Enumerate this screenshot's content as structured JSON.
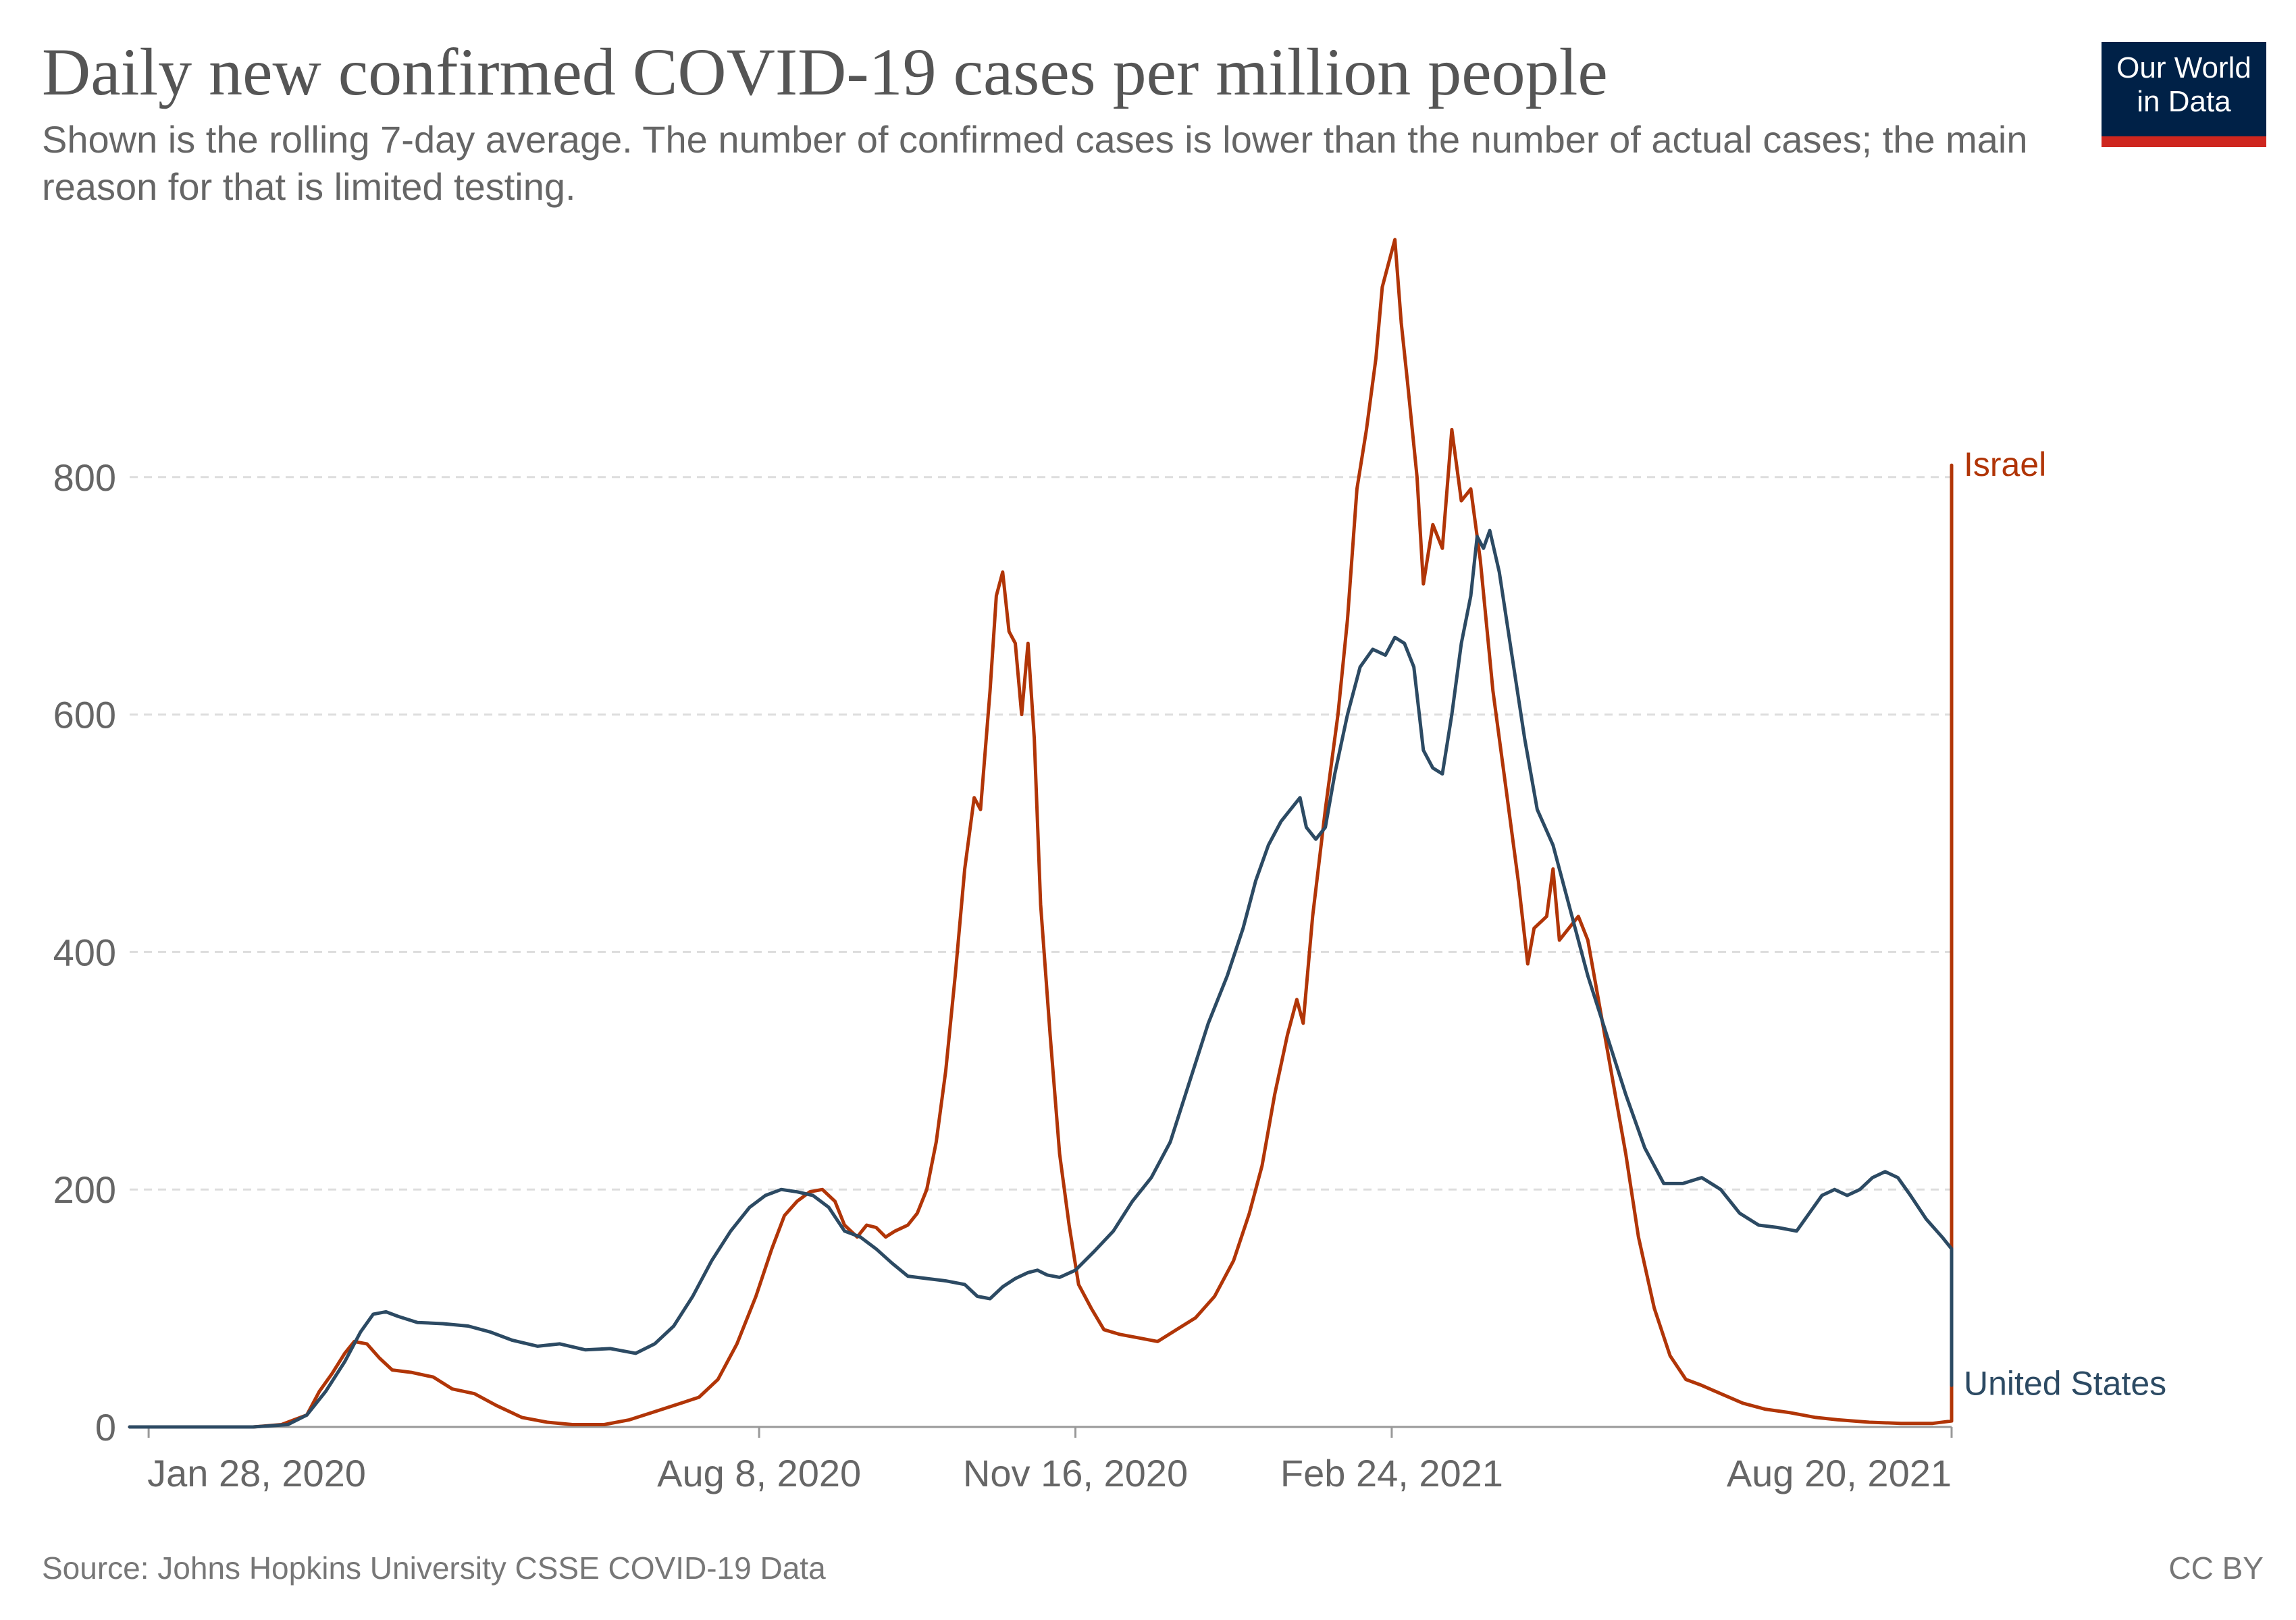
{
  "header": {
    "title": "Daily new confirmed COVID-19 cases per million people",
    "subtitle": "Shown is the rolling 7-day average. The number of confirmed cases is lower than the number of actual cases; the main reason for that is limited testing."
  },
  "logo": {
    "line1": "Our World",
    "line2": "in Data",
    "bg_color": "#002147",
    "accent_color": "#ce261e"
  },
  "footer": {
    "source": "Source: Johns Hopkins University CSSE COVID-19 Data",
    "license": "CC BY"
  },
  "chart_data": {
    "type": "line",
    "title": "Daily new confirmed COVID-19 cases per million people",
    "xlabel": "",
    "ylabel": "",
    "x_range": [
      "2020-01-22",
      "2021-09-26"
    ],
    "ylim": [
      0,
      1000
    ],
    "y_ticks": [
      0,
      200,
      400,
      600,
      800
    ],
    "y_tick_labels": [
      "0",
      "200",
      "400",
      "600",
      "800"
    ],
    "x_ticks": [
      "2020-01-28",
      "2020-08-08",
      "2020-11-16",
      "2021-02-24",
      "2021-08-20"
    ],
    "x_tick_labels": [
      "Jan 28, 2020",
      "Aug 8, 2020",
      "Nov 16, 2020",
      "Feb 24, 2021",
      "Aug 20, 2021"
    ],
    "grid": "horizontal dashed",
    "legend": "inline labels at line ends",
    "series": [
      {
        "name": "Israel",
        "color": "#b13507",
        "points": [
          [
            "2020-01-22",
            0
          ],
          [
            "2020-03-01",
            0
          ],
          [
            "2020-03-10",
            2
          ],
          [
            "2020-03-18",
            10
          ],
          [
            "2020-03-22",
            30
          ],
          [
            "2020-03-26",
            45
          ],
          [
            "2020-03-30",
            62
          ],
          [
            "2020-04-02",
            72
          ],
          [
            "2020-04-06",
            70
          ],
          [
            "2020-04-10",
            58
          ],
          [
            "2020-04-14",
            48
          ],
          [
            "2020-04-20",
            46
          ],
          [
            "2020-04-27",
            42
          ],
          [
            "2020-05-03",
            32
          ],
          [
            "2020-05-10",
            28
          ],
          [
            "2020-05-17",
            18
          ],
          [
            "2020-05-25",
            8
          ],
          [
            "2020-06-02",
            4
          ],
          [
            "2020-06-10",
            2
          ],
          [
            "2020-06-20",
            2
          ],
          [
            "2020-06-28",
            6
          ],
          [
            "2020-07-05",
            12
          ],
          [
            "2020-07-12",
            18
          ],
          [
            "2020-07-20",
            25
          ],
          [
            "2020-07-26",
            40
          ],
          [
            "2020-08-01",
            70
          ],
          [
            "2020-08-07",
            110
          ],
          [
            "2020-08-12",
            150
          ],
          [
            "2020-08-16",
            178
          ],
          [
            "2020-08-20",
            190
          ],
          [
            "2020-08-24",
            198
          ],
          [
            "2020-08-28",
            200
          ],
          [
            "2020-09-01",
            190
          ],
          [
            "2020-09-04",
            170
          ],
          [
            "2020-09-08",
            160
          ],
          [
            "2020-09-11",
            170
          ],
          [
            "2020-09-14",
            168
          ],
          [
            "2020-09-17",
            160
          ],
          [
            "2020-09-20",
            165
          ],
          [
            "2020-09-24",
            170
          ],
          [
            "2020-09-27",
            180
          ],
          [
            "2020-09-30",
            200
          ],
          [
            "2020-10-03",
            240
          ],
          [
            "2020-10-06",
            300
          ],
          [
            "2020-10-09",
            380
          ],
          [
            "2020-10-12",
            470
          ],
          [
            "2020-10-15",
            530
          ],
          [
            "2020-10-17",
            520
          ],
          [
            "2020-10-20",
            620
          ],
          [
            "2020-10-22",
            700
          ],
          [
            "2020-10-24",
            720
          ],
          [
            "2020-10-26",
            670
          ],
          [
            "2020-10-28",
            660
          ],
          [
            "2020-10-30",
            600
          ],
          [
            "2020-11-01",
            660
          ],
          [
            "2020-11-03",
            580
          ],
          [
            "2020-11-05",
            440
          ],
          [
            "2020-11-08",
            330
          ],
          [
            "2020-11-11",
            230
          ],
          [
            "2020-11-14",
            170
          ],
          [
            "2020-11-17",
            120
          ],
          [
            "2020-11-21",
            100
          ],
          [
            "2020-11-25",
            82
          ],
          [
            "2020-11-30",
            78
          ],
          [
            "2020-12-06",
            75
          ],
          [
            "2020-12-12",
            72
          ],
          [
            "2020-12-18",
            82
          ],
          [
            "2020-12-24",
            92
          ],
          [
            "2020-12-30",
            110
          ],
          [
            "2021-01-05",
            140
          ],
          [
            "2021-01-10",
            180
          ],
          [
            "2021-01-14",
            220
          ],
          [
            "2021-01-18",
            280
          ],
          [
            "2021-01-22",
            330
          ],
          [
            "2021-01-25",
            360
          ],
          [
            "2021-01-27",
            340
          ],
          [
            "2021-01-30",
            430
          ],
          [
            "2021-02-03",
            520
          ],
          [
            "2021-02-07",
            600
          ],
          [
            "2021-02-10",
            680
          ],
          [
            "2021-02-13",
            790
          ],
          [
            "2021-02-16",
            840
          ],
          [
            "2021-02-19",
            900
          ],
          [
            "2021-02-21",
            960
          ],
          [
            "2021-02-23",
            980
          ],
          [
            "2021-02-25",
            1000
          ],
          [
            "2021-02-27",
            930
          ],
          [
            "2021-03-01",
            880
          ],
          [
            "2021-03-04",
            800
          ],
          [
            "2021-03-06",
            710
          ],
          [
            "2021-03-09",
            760
          ],
          [
            "2021-03-12",
            740
          ],
          [
            "2021-03-15",
            840
          ],
          [
            "2021-03-18",
            780
          ],
          [
            "2021-03-21",
            790
          ],
          [
            "2021-03-24",
            730
          ],
          [
            "2021-03-28",
            620
          ],
          [
            "2021-04-01",
            540
          ],
          [
            "2021-04-05",
            460
          ],
          [
            "2021-04-08",
            390
          ],
          [
            "2021-04-10",
            420
          ],
          [
            "2021-04-14",
            430
          ],
          [
            "2021-04-16",
            470
          ],
          [
            "2021-04-18",
            410
          ],
          [
            "2021-04-21",
            420
          ],
          [
            "2021-04-24",
            430
          ],
          [
            "2021-04-27",
            410
          ],
          [
            "2021-05-01",
            350
          ],
          [
            "2021-05-05",
            290
          ],
          [
            "2021-05-09",
            230
          ],
          [
            "2021-05-13",
            160
          ],
          [
            "2021-05-18",
            100
          ],
          [
            "2021-05-23",
            60
          ],
          [
            "2021-05-28",
            40
          ],
          [
            "2021-06-02",
            35
          ],
          [
            "2021-06-08",
            28
          ],
          [
            "2021-06-15",
            20
          ],
          [
            "2021-06-22",
            15
          ],
          [
            "2021-06-30",
            12
          ],
          [
            "2021-07-08",
            8
          ],
          [
            "2021-07-15",
            6
          ],
          [
            "2021-07-25",
            4
          ],
          [
            "2021-08-04",
            3
          ],
          [
            "2021-08-14",
            3
          ],
          [
            "2021-08-20",
            5
          ],
          [
            "2021-08-26",
            12
          ],
          [
            "2021-09-01",
            30
          ],
          [
            "2021-09-06",
            55
          ],
          [
            "2021-09-10",
            90
          ],
          [
            "2021-09-14",
            150
          ],
          [
            "2021-09-18",
            230
          ],
          [
            "2021-09-22",
            300
          ],
          [
            "2021-09-26",
            360
          ],
          [
            "2021-09-30",
            420
          ],
          [
            "2021-10-03",
            480
          ],
          [
            "2021-10-06",
            560
          ],
          [
            "2021-10-09",
            620
          ],
          [
            "2021-10-12",
            720
          ],
          [
            "2021-10-14",
            780
          ],
          [
            "2021-10-15",
            730
          ],
          [
            "2021-10-17",
            800
          ],
          [
            "2021-10-19",
            810
          ]
        ]
      },
      {
        "name": "United States",
        "color": "#2c4a63",
        "points": [
          [
            "2020-01-22",
            0
          ],
          [
            "2020-03-01",
            0
          ],
          [
            "2020-03-12",
            2
          ],
          [
            "2020-03-18",
            10
          ],
          [
            "2020-03-24",
            30
          ],
          [
            "2020-03-30",
            55
          ],
          [
            "2020-04-04",
            80
          ],
          [
            "2020-04-08",
            95
          ],
          [
            "2020-04-12",
            97
          ],
          [
            "2020-04-16",
            93
          ],
          [
            "2020-04-22",
            88
          ],
          [
            "2020-04-30",
            87
          ],
          [
            "2020-05-08",
            85
          ],
          [
            "2020-05-15",
            80
          ],
          [
            "2020-05-22",
            73
          ],
          [
            "2020-05-30",
            68
          ],
          [
            "2020-06-06",
            70
          ],
          [
            "2020-06-14",
            65
          ],
          [
            "2020-06-22",
            66
          ],
          [
            "2020-06-30",
            62
          ],
          [
            "2020-07-06",
            70
          ],
          [
            "2020-07-12",
            85
          ],
          [
            "2020-07-18",
            110
          ],
          [
            "2020-07-24",
            140
          ],
          [
            "2020-07-30",
            165
          ],
          [
            "2020-08-05",
            185
          ],
          [
            "2020-08-10",
            195
          ],
          [
            "2020-08-15",
            200
          ],
          [
            "2020-08-20",
            198
          ],
          [
            "2020-08-25",
            195
          ],
          [
            "2020-08-30",
            185
          ],
          [
            "2020-09-04",
            165
          ],
          [
            "2020-09-09",
            160
          ],
          [
            "2020-09-14",
            150
          ],
          [
            "2020-09-19",
            138
          ],
          [
            "2020-09-24",
            127
          ],
          [
            "2020-09-30",
            125
          ],
          [
            "2020-10-06",
            123
          ],
          [
            "2020-10-12",
            120
          ],
          [
            "2020-10-16",
            110
          ],
          [
            "2020-10-20",
            108
          ],
          [
            "2020-10-24",
            118
          ],
          [
            "2020-10-28",
            125
          ],
          [
            "2020-11-01",
            130
          ],
          [
            "2020-11-04",
            132
          ],
          [
            "2020-11-07",
            128
          ],
          [
            "2020-11-11",
            126
          ],
          [
            "2020-11-16",
            132
          ],
          [
            "2020-11-22",
            148
          ],
          [
            "2020-11-28",
            165
          ],
          [
            "2020-12-04",
            190
          ],
          [
            "2020-12-10",
            210
          ],
          [
            "2020-12-16",
            240
          ],
          [
            "2020-12-22",
            290
          ],
          [
            "2020-12-28",
            340
          ],
          [
            "2021-01-03",
            380
          ],
          [
            "2021-01-08",
            420
          ],
          [
            "2021-01-12",
            460
          ],
          [
            "2021-01-16",
            490
          ],
          [
            "2021-01-20",
            510
          ],
          [
            "2021-01-23",
            520
          ],
          [
            "2021-01-26",
            530
          ],
          [
            "2021-01-28",
            505
          ],
          [
            "2021-01-31",
            495
          ],
          [
            "2021-02-03",
            505
          ],
          [
            "2021-02-06",
            550
          ],
          [
            "2021-02-10",
            600
          ],
          [
            "2021-02-14",
            640
          ],
          [
            "2021-02-18",
            655
          ],
          [
            "2021-02-22",
            650
          ],
          [
            "2021-02-25",
            665
          ],
          [
            "2021-02-28",
            660
          ],
          [
            "2021-03-03",
            640
          ],
          [
            "2021-03-06",
            570
          ],
          [
            "2021-03-09",
            555
          ],
          [
            "2021-03-12",
            550
          ],
          [
            "2021-03-15",
            600
          ],
          [
            "2021-03-18",
            660
          ],
          [
            "2021-03-21",
            700
          ],
          [
            "2021-03-23",
            750
          ],
          [
            "2021-03-25",
            740
          ],
          [
            "2021-03-27",
            755
          ],
          [
            "2021-03-30",
            720
          ],
          [
            "2021-04-03",
            650
          ],
          [
            "2021-04-07",
            580
          ],
          [
            "2021-04-11",
            520
          ],
          [
            "2021-04-16",
            490
          ],
          [
            "2021-04-21",
            440
          ],
          [
            "2021-04-27",
            380
          ],
          [
            "2021-05-03",
            330
          ],
          [
            "2021-05-09",
            280
          ],
          [
            "2021-05-15",
            235
          ],
          [
            "2021-05-21",
            205
          ],
          [
            "2021-05-27",
            205
          ],
          [
            "2021-06-02",
            210
          ],
          [
            "2021-06-08",
            200
          ],
          [
            "2021-06-14",
            180
          ],
          [
            "2021-06-20",
            170
          ],
          [
            "2021-06-26",
            168
          ],
          [
            "2021-07-02",
            165
          ],
          [
            "2021-07-06",
            180
          ],
          [
            "2021-07-10",
            195
          ],
          [
            "2021-07-14",
            200
          ],
          [
            "2021-07-18",
            195
          ],
          [
            "2021-07-22",
            200
          ],
          [
            "2021-07-26",
            210
          ],
          [
            "2021-07-30",
            215
          ],
          [
            "2021-08-03",
            210
          ],
          [
            "2021-08-07",
            195
          ],
          [
            "2021-08-12",
            175
          ],
          [
            "2021-08-17",
            160
          ],
          [
            "2021-08-22",
            150
          ],
          [
            "2021-08-27",
            130
          ],
          [
            "2021-09-01",
            115
          ],
          [
            "2021-09-06",
            95
          ],
          [
            "2021-09-11",
            80
          ],
          [
            "2021-09-16",
            68
          ],
          [
            "2021-09-21",
            55
          ],
          [
            "2021-09-26",
            45
          ],
          [
            "2021-10-01",
            42
          ],
          [
            "2021-10-06",
            38
          ],
          [
            "2021-10-11",
            36
          ],
          [
            "2021-10-16",
            35
          ],
          [
            "2021-10-19",
            36
          ]
        ]
      }
    ]
  }
}
